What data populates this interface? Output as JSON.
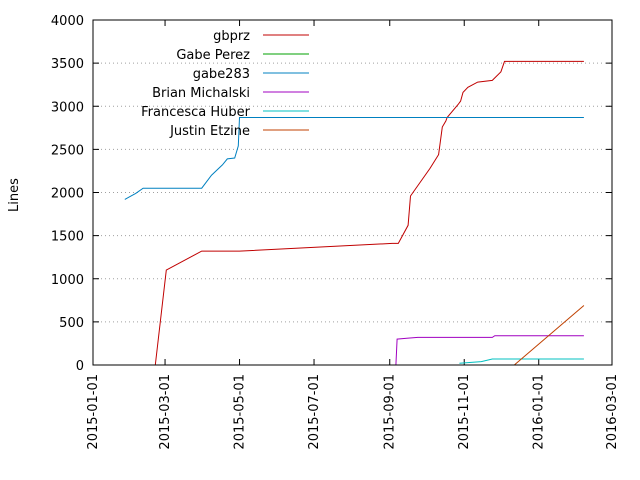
{
  "chart_data": {
    "type": "line",
    "title": "",
    "xlabel": "",
    "ylabel": "Lines",
    "x_axis_type": "date",
    "xlim": [
      "2015-01-01",
      "2016-03-01"
    ],
    "ylim": [
      0,
      4000
    ],
    "x_ticks": [
      "2015-01-01",
      "2015-03-01",
      "2015-05-01",
      "2015-07-01",
      "2015-09-01",
      "2015-11-01",
      "2016-01-01",
      "2016-03-01"
    ],
    "y_ticks": [
      0,
      500,
      1000,
      1500,
      2000,
      2500,
      3000,
      3500,
      4000
    ],
    "grid": "horizontal dotted at y ticks",
    "legend_position": "top-left, inside plot",
    "series": [
      {
        "name": "gbprz",
        "color": "#c00000",
        "points": [
          [
            "2015-02-21",
            0
          ],
          [
            "2015-03-02",
            1100
          ],
          [
            "2015-03-31",
            1320
          ],
          [
            "2015-05-01",
            1320
          ],
          [
            "2015-09-03",
            1410
          ],
          [
            "2015-09-08",
            1410
          ],
          [
            "2015-09-16",
            1620
          ],
          [
            "2015-09-18",
            1960
          ],
          [
            "2015-10-04",
            2280
          ],
          [
            "2015-10-11",
            2440
          ],
          [
            "2015-10-14",
            2760
          ],
          [
            "2015-10-17",
            2830
          ],
          [
            "2015-10-18",
            2870
          ],
          [
            "2015-10-27",
            3020
          ],
          [
            "2015-10-29",
            3060
          ],
          [
            "2015-10-31",
            3160
          ],
          [
            "2015-11-04",
            3220
          ],
          [
            "2015-11-12",
            3280
          ],
          [
            "2015-11-24",
            3300
          ],
          [
            "2015-12-01",
            3400
          ],
          [
            "2015-12-04",
            3520
          ],
          [
            "2016-02-07",
            3520
          ]
        ]
      },
      {
        "name": "Gabe Perez",
        "color": "#00a000",
        "points": []
      },
      {
        "name": "gabe283",
        "color": "#0080c0",
        "points": [
          [
            "2015-01-27",
            1920
          ],
          [
            "2015-02-05",
            1990
          ],
          [
            "2015-02-11",
            2050
          ],
          [
            "2015-03-31",
            2050
          ],
          [
            "2015-04-08",
            2200
          ],
          [
            "2015-04-17",
            2320
          ],
          [
            "2015-04-21",
            2390
          ],
          [
            "2015-04-27",
            2400
          ],
          [
            "2015-04-30",
            2540
          ],
          [
            "2015-05-01",
            2870
          ],
          [
            "2016-02-07",
            2870
          ]
        ]
      },
      {
        "name": "Brian Michalski",
        "color": "#a000c0",
        "points": [
          [
            "2015-09-06",
            0
          ],
          [
            "2015-09-07",
            300
          ],
          [
            "2015-09-15",
            310
          ],
          [
            "2015-09-24",
            320
          ],
          [
            "2015-11-24",
            320
          ],
          [
            "2015-11-26",
            340
          ],
          [
            "2016-02-07",
            340
          ]
        ]
      },
      {
        "name": "Francesca Huber",
        "color": "#00c0c0",
        "points": [
          [
            "2015-10-28",
            20
          ],
          [
            "2015-11-15",
            40
          ],
          [
            "2015-11-24",
            70
          ],
          [
            "2016-02-07",
            70
          ]
        ]
      },
      {
        "name": "Justin Etzine",
        "color": "#c04000",
        "points": [
          [
            "2015-12-12",
            0
          ],
          [
            "2016-02-07",
            690
          ]
        ]
      }
    ]
  }
}
